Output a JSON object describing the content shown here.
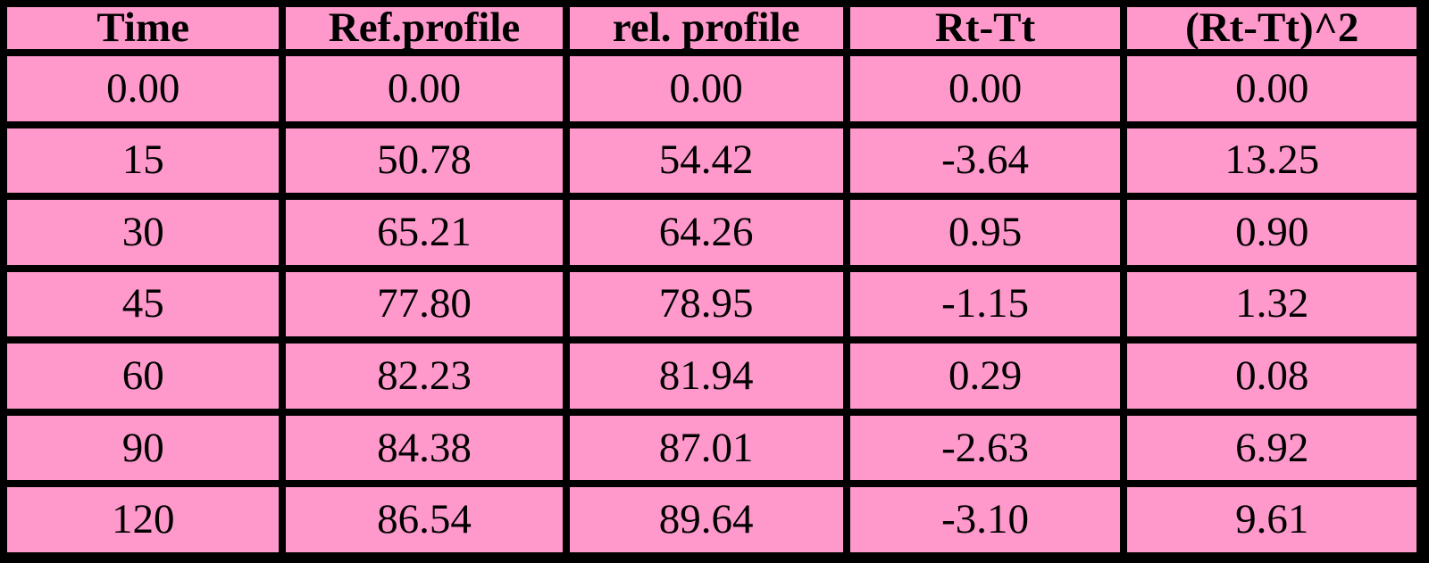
{
  "colors": {
    "cell_background": "#FF99CC",
    "grid": "#000000",
    "text": "#000000"
  },
  "chart_data": {
    "type": "table",
    "title": "",
    "columns": [
      "Time",
      "Ref.profile",
      "rel. profile",
      "Rt-Tt",
      "(Rt-Tt)^2"
    ],
    "rows": [
      [
        "0.00",
        "0.00",
        "0.00",
        "0.00",
        "0.00"
      ],
      [
        "15",
        "50.78",
        "54.42",
        "-3.64",
        "13.25"
      ],
      [
        "30",
        "65.21",
        "64.26",
        "0.95",
        "0.90"
      ],
      [
        "45",
        "77.80",
        "78.95",
        "-1.15",
        "1.32"
      ],
      [
        "60",
        "82.23",
        "81.94",
        "0.29",
        "0.08"
      ],
      [
        "90",
        "84.38",
        "87.01",
        "-2.63",
        "6.92"
      ],
      [
        "120",
        "86.54",
        "89.64",
        "-3.10",
        "9.61"
      ]
    ]
  }
}
